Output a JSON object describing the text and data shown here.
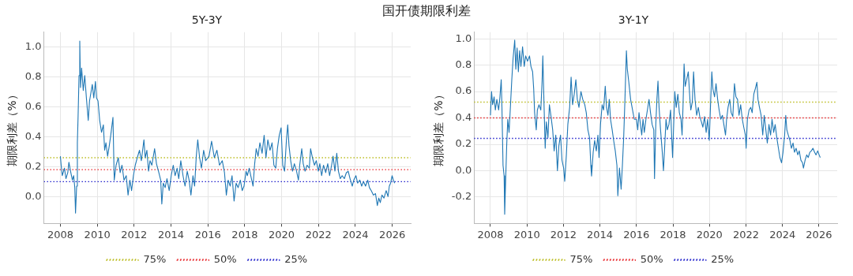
{
  "chart_data": [
    {
      "type": "line",
      "title": "5Y-3Y",
      "ylabel": "期限利差（%）",
      "annotations": [
        "国开债期限利差"
      ],
      "grid": true,
      "legend": "bottom",
      "marker": "none",
      "xlim": [
        2007.1,
        2027.0
      ],
      "xticks": [
        2008,
        2010,
        2012,
        2014,
        2016,
        2018,
        2020,
        2022,
        2024,
        2026
      ],
      "ylim": [
        -0.18,
        1.1
      ],
      "yticks": [
        {
          "value": 0,
          "label": "0.0"
        },
        {
          "value": 0.2,
          "label": "0.2"
        },
        {
          "value": 0.4,
          "label": "0.4"
        },
        {
          "value": 0.6,
          "label": "0.6"
        },
        {
          "value": 0.8,
          "label": "0.8"
        },
        {
          "value": 1.0,
          "label": "1.0"
        }
      ],
      "series": [
        {
          "color": "#1f77b4",
          "line_style": "solid",
          "x": [
            2008.0,
            2008.04,
            2008.1,
            2008.22,
            2008.3,
            2008.4,
            2008.46,
            2008.55,
            2008.65,
            2008.72,
            2008.78,
            2008.82,
            2008.88,
            2008.92,
            2008.96,
            2009.01,
            2009.05,
            2009.09,
            2009.15,
            2009.24,
            2009.32,
            2009.41,
            2009.51,
            2009.58,
            2009.73,
            2009.81,
            2009.9,
            2009.96,
            2010.04,
            2010.13,
            2010.23,
            2010.33,
            2010.4,
            2010.47,
            2010.56,
            2010.65,
            2010.73,
            2010.85,
            2010.92,
            2011.02,
            2011.14,
            2011.24,
            2011.34,
            2011.45,
            2011.57,
            2011.67,
            2011.77,
            2011.86,
            2011.96,
            2012.06,
            2012.17,
            2012.29,
            2012.39,
            2012.53,
            2012.6,
            2012.69,
            2012.78,
            2012.86,
            2012.96,
            2013.11,
            2013.21,
            2013.32,
            2013.44,
            2013.5,
            2013.58,
            2013.68,
            2013.78,
            2013.9,
            2014.01,
            2014.12,
            2014.22,
            2014.33,
            2014.42,
            2014.53,
            2014.65,
            2014.76,
            2014.88,
            2014.98,
            2015.08,
            2015.19,
            2015.28,
            2015.37,
            2015.45,
            2015.55,
            2015.65,
            2015.77,
            2015.88,
            2016.06,
            2016.2,
            2016.35,
            2016.49,
            2016.63,
            2016.78,
            2016.9,
            2017.0,
            2017.1,
            2017.21,
            2017.31,
            2017.42,
            2017.53,
            2017.64,
            2017.76,
            2017.86,
            2017.96,
            2018.07,
            2018.14,
            2018.24,
            2018.36,
            2018.45,
            2018.53,
            2018.62,
            2018.72,
            2018.82,
            2018.94,
            2019.05,
            2019.15,
            2019.25,
            2019.37,
            2019.48,
            2019.58,
            2019.68,
            2019.77,
            2019.87,
            2019.97,
            2020.06,
            2020.16,
            2020.26,
            2020.33,
            2020.4,
            2020.49,
            2020.59,
            2020.69,
            2020.81,
            2020.91,
            2020.98,
            2021.09,
            2021.17,
            2021.27,
            2021.38,
            2021.5,
            2021.57,
            2021.67,
            2021.78,
            2021.88,
            2021.99,
            2022.07,
            2022.17,
            2022.27,
            2022.39,
            2022.5,
            2022.6,
            2022.71,
            2022.79,
            2022.89,
            2022.99,
            2023.08,
            2023.18,
            2023.28,
            2023.4,
            2023.51,
            2023.61,
            2023.71,
            2023.83,
            2023.91,
            2024.03,
            2024.12,
            2024.24,
            2024.34,
            2024.44,
            2024.55,
            2024.67,
            2024.76,
            2024.86,
            2024.98,
            2025.09,
            2025.19,
            2025.27,
            2025.35,
            2025.44,
            2025.55,
            2025.67,
            2025.77,
            2025.84,
            2025.91,
            2025.99,
            2026.06,
            2026.13
          ],
          "values": [
            0.27,
            0.21,
            0.14,
            0.19,
            0.12,
            0.16,
            0.23,
            0.17,
            0.11,
            0.14,
            0.06,
            -0.11,
            0.07,
            0.36,
            0.54,
            0.81,
            1.04,
            0.73,
            0.86,
            0.71,
            0.81,
            0.66,
            0.51,
            0.64,
            0.75,
            0.66,
            0.77,
            0.66,
            0.64,
            0.51,
            0.43,
            0.48,
            0.31,
            0.36,
            0.27,
            0.34,
            0.41,
            0.53,
            0.11,
            0.21,
            0.26,
            0.16,
            0.21,
            0.11,
            0.14,
            0.01,
            0.11,
            0.04,
            0.14,
            0.21,
            0.26,
            0.31,
            0.24,
            0.38,
            0.26,
            0.31,
            0.17,
            0.24,
            0.21,
            0.32,
            0.22,
            0.17,
            0.11,
            -0.05,
            0.09,
            0.06,
            0.12,
            0.04,
            0.14,
            0.21,
            0.14,
            0.19,
            0.12,
            0.24,
            0.14,
            0.07,
            0.17,
            0.11,
            0.01,
            0.14,
            0.07,
            0.27,
            0.38,
            0.26,
            0.19,
            0.31,
            0.24,
            0.27,
            0.37,
            0.26,
            0.31,
            0.21,
            0.24,
            0.16,
            0.01,
            0.11,
            0.07,
            0.14,
            -0.03,
            0.09,
            0.06,
            0.11,
            0.04,
            0.07,
            0.17,
            0.14,
            0.19,
            0.12,
            0.07,
            0.21,
            0.32,
            0.27,
            0.36,
            0.29,
            0.41,
            0.26,
            0.38,
            0.31,
            0.36,
            0.21,
            0.19,
            0.32,
            0.41,
            0.46,
            0.21,
            0.17,
            0.38,
            0.48,
            0.34,
            0.24,
            0.17,
            0.22,
            0.17,
            0.11,
            0.21,
            0.32,
            0.22,
            0.17,
            0.21,
            0.19,
            0.32,
            0.26,
            0.21,
            0.24,
            0.17,
            0.22,
            0.14,
            0.21,
            0.16,
            0.22,
            0.14,
            0.21,
            0.27,
            0.17,
            0.29,
            0.17,
            0.12,
            0.14,
            0.12,
            0.16,
            0.17,
            0.12,
            0.07,
            0.11,
            0.14,
            0.09,
            0.11,
            0.07,
            0.1,
            0.07,
            0.11,
            0.06,
            0.04,
            0.01,
            0.02,
            -0.06,
            -0.01,
            -0.04,
            0.01,
            -0.01,
            0.04,
            0.0,
            0.07,
            0.09,
            0.14,
            0.11,
            0.09
          ]
        },
        {
          "name": "75%",
          "color": "#bcbd22",
          "line_style": "dotted",
          "x": [
            2007.1,
            2027.0
          ],
          "values": [
            0.26,
            0.26
          ]
        },
        {
          "name": "50%",
          "color": "#e8262a",
          "line_style": "dotted",
          "x": [
            2007.1,
            2027.0
          ],
          "values": [
            0.18,
            0.18
          ]
        },
        {
          "name": "25%",
          "color": "#2424cc",
          "line_style": "dotted",
          "x": [
            2007.1,
            2027.0
          ],
          "values": [
            0.1,
            0.1
          ]
        }
      ]
    },
    {
      "type": "line",
      "title": "3Y-1Y",
      "ylabel": "期限利差（%）",
      "grid": true,
      "legend": "bottom",
      "marker": "none",
      "xlim": [
        2007.1,
        2027.0
      ],
      "xticks": [
        2008,
        2010,
        2012,
        2014,
        2016,
        2018,
        2020,
        2022,
        2024,
        2026
      ],
      "ylim": [
        -0.4,
        1.05
      ],
      "yticks": [
        {
          "value": -0.2,
          "label": "-0.2"
        },
        {
          "value": 0,
          "label": "0.0"
        },
        {
          "value": 0.2,
          "label": "0.2"
        },
        {
          "value": 0.4,
          "label": "0.4"
        },
        {
          "value": 0.6,
          "label": "0.6"
        },
        {
          "value": 0.8,
          "label": "0.8"
        },
        {
          "value": 1.0,
          "label": "1.0"
        }
      ],
      "series": [
        {
          "color": "#1f77b4",
          "line_style": "solid",
          "x": [
            2008.0,
            2008.06,
            2008.12,
            2008.2,
            2008.27,
            2008.35,
            2008.45,
            2008.52,
            2008.59,
            2008.63,
            2008.69,
            2008.75,
            2008.78,
            2008.84,
            2008.89,
            2008.95,
            2009.02,
            2009.1,
            2009.17,
            2009.24,
            2009.33,
            2009.39,
            2009.46,
            2009.53,
            2009.6,
            2009.67,
            2009.76,
            2009.85,
            2009.93,
            2010.03,
            2010.14,
            2010.22,
            2010.31,
            2010.37,
            2010.42,
            2010.51,
            2010.57,
            2010.66,
            2010.76,
            2010.83,
            2010.87,
            2010.94,
            2011.0,
            2011.06,
            2011.15,
            2011.23,
            2011.32,
            2011.41,
            2011.49,
            2011.58,
            2011.67,
            2011.75,
            2011.84,
            2011.92,
            2012.01,
            2012.07,
            2012.16,
            2012.24,
            2012.34,
            2012.42,
            2012.5,
            2012.59,
            2012.68,
            2012.76,
            2012.85,
            2012.96,
            2013.06,
            2013.17,
            2013.25,
            2013.34,
            2013.43,
            2013.5,
            2013.54,
            2013.63,
            2013.71,
            2013.8,
            2013.89,
            2013.95,
            2014.03,
            2014.12,
            2014.2,
            2014.29,
            2014.36,
            2014.44,
            2014.51,
            2014.58,
            2014.67,
            2014.75,
            2014.84,
            2014.93,
            2014.98,
            2015.07,
            2015.16,
            2015.23,
            2015.3,
            2015.37,
            2015.45,
            2015.5,
            2015.59,
            2015.68,
            2015.76,
            2015.88,
            2016.0,
            2016.07,
            2016.14,
            2016.22,
            2016.29,
            2016.36,
            2016.43,
            2016.52,
            2016.6,
            2016.69,
            2016.77,
            2016.86,
            2016.95,
            2016.99,
            2017.06,
            2017.12,
            2017.18,
            2017.24,
            2017.32,
            2017.41,
            2017.48,
            2017.55,
            2017.62,
            2017.69,
            2017.78,
            2017.87,
            2017.94,
            2017.98,
            2018.04,
            2018.1,
            2018.18,
            2018.27,
            2018.35,
            2018.44,
            2018.5,
            2018.55,
            2018.61,
            2018.67,
            2018.75,
            2018.84,
            2018.93,
            2018.98,
            2019.06,
            2019.13,
            2019.21,
            2019.3,
            2019.39,
            2019.47,
            2019.56,
            2019.64,
            2019.73,
            2019.82,
            2019.9,
            2019.99,
            2020.07,
            2020.13,
            2020.19,
            2020.28,
            2020.36,
            2020.45,
            2020.53,
            2020.62,
            2020.71,
            2020.79,
            2020.88,
            2020.94,
            2021.02,
            2021.11,
            2021.19,
            2021.28,
            2021.37,
            2021.45,
            2021.54,
            2021.62,
            2021.71,
            2021.8,
            2021.88,
            2021.97,
            2022.01,
            2022.08,
            2022.17,
            2022.26,
            2022.34,
            2022.43,
            2022.51,
            2022.6,
            2022.66,
            2022.74,
            2022.83,
            2022.92,
            2023.0,
            2023.09,
            2023.17,
            2023.26,
            2023.35,
            2023.43,
            2023.52,
            2023.6,
            2023.69,
            2023.78,
            2023.86,
            2023.95,
            2024.03,
            2024.12,
            2024.18,
            2024.24,
            2024.32,
            2024.41,
            2024.49,
            2024.58,
            2024.66,
            2024.75,
            2024.84,
            2024.92,
            2025.01,
            2025.1,
            2025.15,
            2025.24,
            2025.33,
            2025.41,
            2025.5,
            2025.58,
            2025.67,
            2025.76,
            2025.84,
            2025.93,
            2026.01,
            2026.07
          ],
          "values": [
            0.42,
            0.6,
            0.5,
            0.56,
            0.46,
            0.54,
            0.46,
            0.56,
            0.69,
            0.48,
            0.04,
            -0.04,
            -0.33,
            -0.04,
            0.19,
            0.39,
            0.29,
            0.5,
            0.69,
            0.85,
            0.99,
            0.77,
            0.93,
            0.75,
            0.91,
            0.79,
            0.94,
            0.79,
            0.87,
            0.83,
            0.87,
            0.79,
            0.75,
            0.62,
            0.44,
            0.31,
            0.46,
            0.5,
            0.46,
            0.68,
            0.87,
            0.48,
            0.17,
            0.37,
            0.25,
            0.5,
            0.41,
            0.31,
            0.15,
            0.27,
            0.0,
            0.19,
            0.27,
            0.08,
            0.02,
            -0.08,
            0.12,
            0.35,
            0.48,
            0.71,
            0.5,
            0.58,
            0.69,
            0.54,
            0.48,
            0.6,
            0.54,
            0.5,
            0.44,
            0.31,
            0.25,
            0.04,
            -0.04,
            0.14,
            0.23,
            0.15,
            0.27,
            0.1,
            0.35,
            0.5,
            0.46,
            0.64,
            0.48,
            0.42,
            0.54,
            0.39,
            0.31,
            0.23,
            0.15,
            0.04,
            -0.19,
            0.02,
            -0.14,
            0.04,
            0.25,
            0.54,
            0.91,
            0.77,
            0.66,
            0.54,
            0.48,
            0.39,
            0.39,
            0.31,
            0.44,
            0.35,
            0.27,
            0.39,
            0.29,
            0.39,
            0.46,
            0.54,
            0.44,
            0.35,
            0.31,
            -0.06,
            0.35,
            0.54,
            0.68,
            0.48,
            0.31,
            0.15,
            0.0,
            0.19,
            0.39,
            0.31,
            0.35,
            0.46,
            0.23,
            0.1,
            0.35,
            0.6,
            0.48,
            0.58,
            0.44,
            0.39,
            0.27,
            0.48,
            0.81,
            0.64,
            0.69,
            0.75,
            0.54,
            0.46,
            0.52,
            0.75,
            0.54,
            0.42,
            0.48,
            0.41,
            0.37,
            0.33,
            0.41,
            0.29,
            0.39,
            0.23,
            0.54,
            0.75,
            0.62,
            0.56,
            0.66,
            0.54,
            0.46,
            0.39,
            0.42,
            0.35,
            0.27,
            0.39,
            0.48,
            0.54,
            0.44,
            0.41,
            0.66,
            0.56,
            0.54,
            0.42,
            0.5,
            0.39,
            0.33,
            0.27,
            0.17,
            0.39,
            0.46,
            0.48,
            0.44,
            0.58,
            0.62,
            0.67,
            0.54,
            0.48,
            0.42,
            0.27,
            0.42,
            0.31,
            0.21,
            0.35,
            0.27,
            0.39,
            0.29,
            0.35,
            0.25,
            0.17,
            0.1,
            0.06,
            0.14,
            0.27,
            0.42,
            0.31,
            0.27,
            0.23,
            0.17,
            0.21,
            0.14,
            0.17,
            0.12,
            0.15,
            0.08,
            0.06,
            0.02,
            0.08,
            0.12,
            0.1,
            0.14,
            0.15,
            0.17,
            0.14,
            0.12,
            0.15,
            0.12,
            0.1
          ]
        },
        {
          "name": "75%",
          "color": "#bcbd22",
          "line_style": "dotted",
          "x": [
            2007.1,
            2027.0
          ],
          "values": [
            0.52,
            0.52
          ]
        },
        {
          "name": "50%",
          "color": "#e8262a",
          "line_style": "dotted",
          "x": [
            2007.1,
            2027.0
          ],
          "values": [
            0.4,
            0.4
          ]
        },
        {
          "name": "25%",
          "color": "#2424cc",
          "line_style": "dotted",
          "x": [
            2007.1,
            2027.0
          ],
          "values": [
            0.245,
            0.245
          ]
        }
      ]
    }
  ]
}
